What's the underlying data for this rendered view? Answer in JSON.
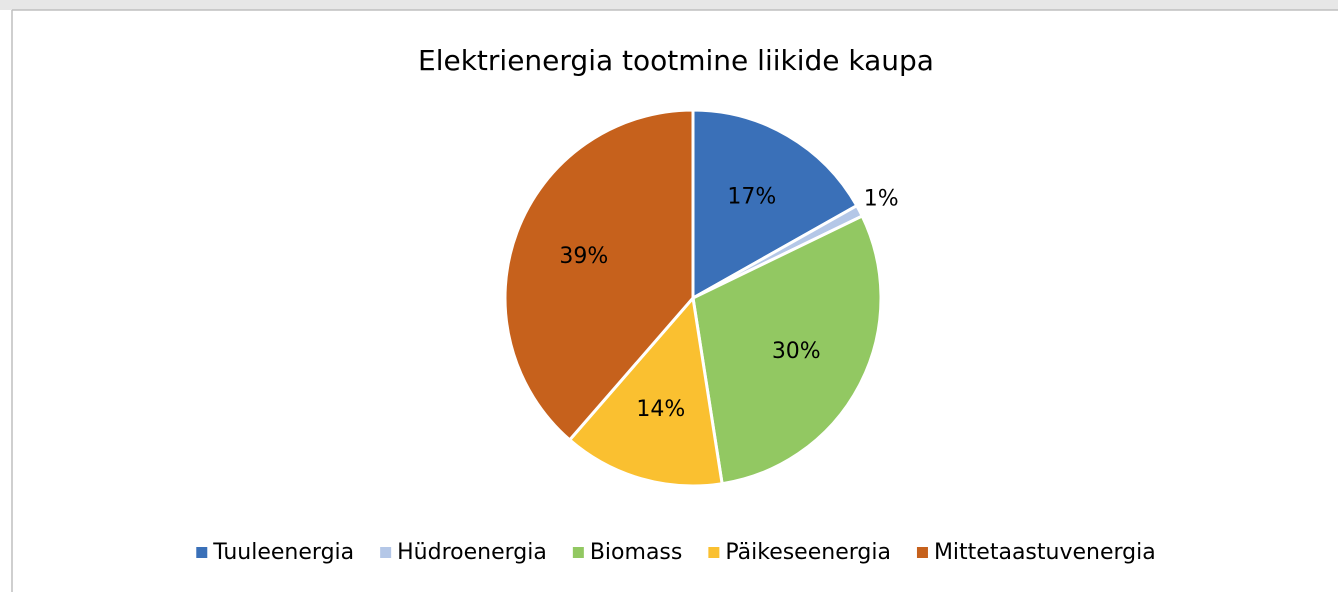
{
  "chart_data": {
    "type": "pie",
    "title": "Elektrienergia tootmine liikide kaupa",
    "categories": [
      "Tuuleenergia",
      "Hüdroenergia",
      "Biomass",
      "Päikeseenergia",
      "Mittetaastuvenergia"
    ],
    "values": [
      17,
      1,
      30,
      14,
      39
    ],
    "value_labels": [
      "17%",
      "1%",
      "30%",
      "14%",
      "39%"
    ],
    "colors": [
      "#3a70b8",
      "#b4c7e7",
      "#92c862",
      "#fac030",
      "#c6611c"
    ],
    "legend": "bottom"
  }
}
